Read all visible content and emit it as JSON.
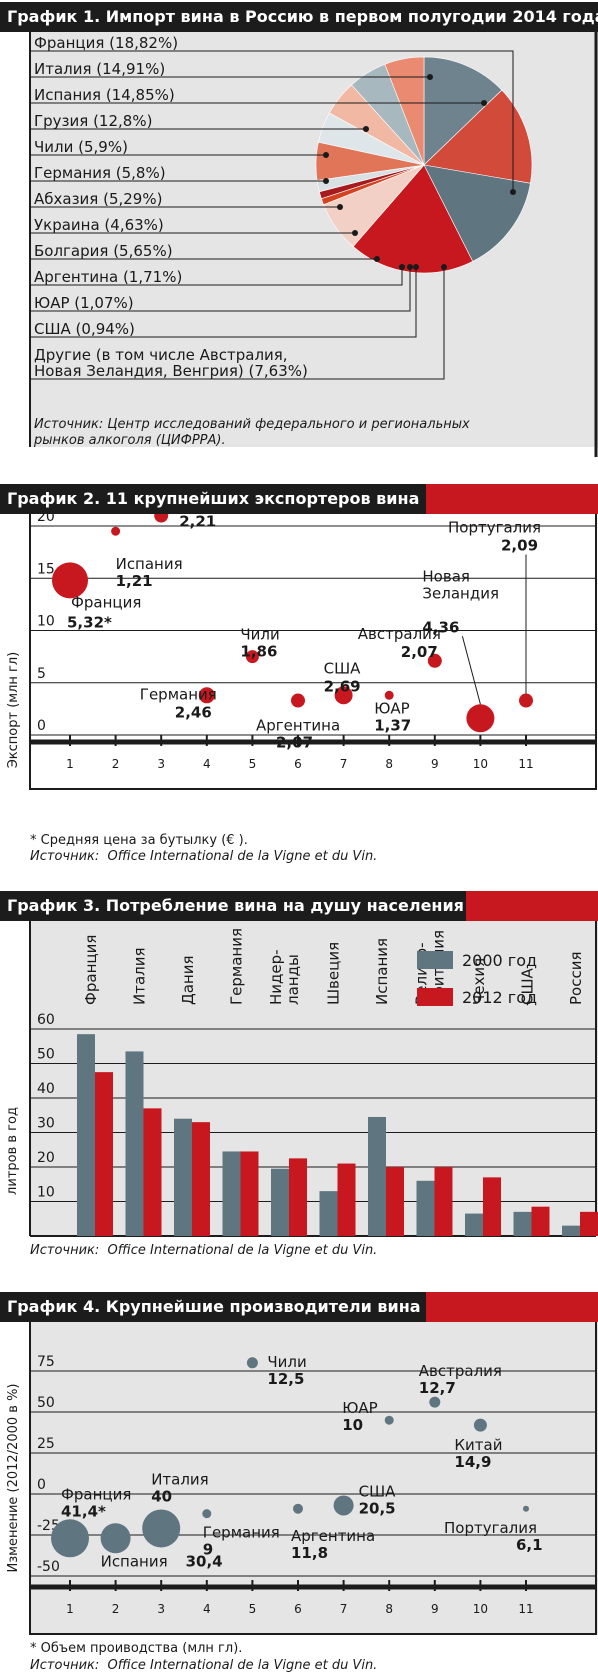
{
  "colors": {
    "red": "#c8181f",
    "dark": "#1c1c1c",
    "slate": "#5f7580",
    "panel_grey": "#e5e5e5"
  },
  "chart_data": [
    {
      "type": "pie",
      "title": "График 1. Импорт вина в Россию в первом полугодии 2014 года",
      "labels": [
        "Франция (18,82%)",
        "Италия (14,91%)",
        "Испания (14,85%)",
        "Грузия (12,8%)",
        "Чили (5,9%)",
        "Германия (5,8%)",
        "Абхазия (5,29%)",
        "Украина (4,63%)",
        "Болгария (5,65%)",
        "Аргентина (1,71%)",
        "ЮАР (1,07%)",
        "США (0,94%)",
        "Другие (в том числе Австралия,",
        "Новая Зеландия, Венгрия) (7,63%)"
      ],
      "source": "Источник: Центр исследований федерального и региональных рынков алкоголя (ЦИФРРА)."
    },
    {
      "type": "scatter",
      "title": "График 2. 11 крупнейших экспортеров вина",
      "ylabel": "Экспорт (млн гл)",
      "xlim": [
        1,
        11
      ],
      "ylim": [
        0,
        20
      ],
      "xticks": [
        "1",
        "2",
        "3",
        "4",
        "5",
        "6",
        "7",
        "8",
        "9",
        "10",
        "11"
      ],
      "yticks": [
        "0",
        "5",
        "10",
        "15",
        "20"
      ],
      "grid": true,
      "points": [
        {
          "name": "Франция",
          "price": "5,32*",
          "x": 1,
          "y": 14.8
        },
        {
          "name": "Испания",
          "price": "1,21",
          "x": 2,
          "y": 19.5
        },
        {
          "name": "Италия",
          "price": "2,21",
          "x": 3,
          "y": 21.0
        },
        {
          "name": "Германия",
          "price": "2,46",
          "x": 4,
          "y": 3.8
        },
        {
          "name": "Чили",
          "price": "1,86",
          "x": 5,
          "y": 7.5
        },
        {
          "name": "Аргентина",
          "price": "2,07",
          "x": 6,
          "y": 3.3
        },
        {
          "name": "США",
          "price": "2,69",
          "x": 7,
          "y": 3.8
        },
        {
          "name": "ЮАР",
          "price": "1,37",
          "x": 8,
          "y": 3.8
        },
        {
          "name": "Австралия",
          "price": "2,07",
          "x": 9,
          "y": 7.1
        },
        {
          "name": "Новая",
          "name2": "Зеландия",
          "price": "4,36",
          "x": 10,
          "y": 1.6
        },
        {
          "name": "Португалия",
          "price": "2,09",
          "x": 11,
          "y": 3.3
        }
      ],
      "note": "* Средняя цена за бутылку (€ ).",
      "source_label": "Источник:",
      "source": "Office International de la Vigne et du Vin."
    },
    {
      "type": "bar",
      "title": "График 3. Потребление вина на душу населения",
      "ylabel": "литров в год",
      "ylim": [
        0,
        60
      ],
      "yticks": [
        "10",
        "20",
        "30",
        "40",
        "50",
        "60"
      ],
      "grid": true,
      "legend_position": "top-right",
      "categories": [
        "Франция",
        "Италия",
        "Дания",
        "Германия",
        "Нидер-ланды",
        "Швеция",
        "Испания",
        "Велико-британия",
        "Чехия",
        "США",
        "Россия"
      ],
      "series": [
        {
          "name": "2000 год",
          "values": [
            58.5,
            53.5,
            34,
            24.5,
            19.5,
            13,
            34.5,
            16,
            6.5,
            7,
            3
          ]
        },
        {
          "name": "2012 год",
          "values": [
            47.5,
            37,
            33,
            24.5,
            22.5,
            21,
            20,
            20,
            17,
            8.5,
            7
          ]
        }
      ],
      "source_label": "Источник:",
      "source": "Office International de la Vigne et du Vin."
    },
    {
      "type": "scatter",
      "title": "График 4. Крупнейшие производители вина",
      "ylabel": "Изменение (2012/2000 в %)",
      "xlim": [
        1,
        11
      ],
      "ylim": [
        -50,
        75
      ],
      "xticks": [
        "1",
        "2",
        "3",
        "4",
        "5",
        "6",
        "7",
        "8",
        "9",
        "10",
        "11"
      ],
      "yticks": [
        "-50",
        "-25",
        "0",
        "25",
        "50",
        "75"
      ],
      "grid": true,
      "points": [
        {
          "name": "Франция",
          "volume": "41,4*",
          "x": 1,
          "y": -27
        },
        {
          "name": "Испания",
          "volume": "30,4",
          "x": 2,
          "y": -27
        },
        {
          "name": "Италия",
          "volume": "40",
          "x": 3,
          "y": -21
        },
        {
          "name": "Германия",
          "volume": "9",
          "x": 4,
          "y": -12
        },
        {
          "name": "Чили",
          "volume": "12,5",
          "x": 5,
          "y": 80
        },
        {
          "name": "Аргентина",
          "volume": "11,8",
          "x": 6,
          "y": -9
        },
        {
          "name": "США",
          "volume": "20,5",
          "x": 7,
          "y": -7
        },
        {
          "name": "ЮАР",
          "volume": "10",
          "x": 8,
          "y": 45
        },
        {
          "name": "Австралия",
          "volume": "12,7",
          "x": 9,
          "y": 56
        },
        {
          "name": "Китай",
          "volume": "14,9",
          "x": 10,
          "y": 42
        },
        {
          "name": "Португалия",
          "volume": "6,1",
          "x": 11,
          "y": -9
        }
      ],
      "note": "* Объем проиводства (млн гл).",
      "source_label": "Источник:",
      "source": "Office International de la Vigne et du Vin."
    }
  ]
}
